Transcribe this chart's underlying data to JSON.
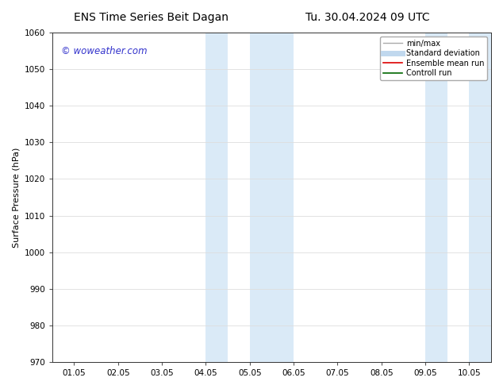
{
  "title_left": "ENS Time Series Beit Dagan",
  "title_right": "Tu. 30.04.2024 09 UTC",
  "ylabel": "Surface Pressure (hPa)",
  "watermark": "© woweather.com",
  "watermark_color": "#3333cc",
  "ylim": [
    970,
    1060
  ],
  "yticks": [
    970,
    980,
    990,
    1000,
    1010,
    1020,
    1030,
    1040,
    1050,
    1060
  ],
  "xtick_labels": [
    "01.05",
    "02.05",
    "03.05",
    "04.05",
    "05.05",
    "06.05",
    "07.05",
    "08.05",
    "09.05",
    "10.05"
  ],
  "xtick_positions": [
    0,
    1,
    2,
    3,
    4,
    5,
    6,
    7,
    8,
    9
  ],
  "xlim": [
    -0.5,
    9.5
  ],
  "bg_color": "#ffffff",
  "plot_bg_color": "#ffffff",
  "shade_regions": [
    {
      "xmin": 3.0,
      "xmax": 3.5,
      "color": "#daeaf7"
    },
    {
      "xmin": 4.0,
      "xmax": 5.0,
      "color": "#daeaf7"
    },
    {
      "xmin": 8.0,
      "xmax": 8.5,
      "color": "#daeaf7"
    },
    {
      "xmin": 9.0,
      "xmax": 9.5,
      "color": "#daeaf7"
    }
  ],
  "legend_items": [
    {
      "label": "min/max",
      "color": "#aaaaaa",
      "lw": 1.0,
      "style": "solid"
    },
    {
      "label": "Standard deviation",
      "color": "#c0d8ee",
      "lw": 5,
      "style": "solid"
    },
    {
      "label": "Ensemble mean run",
      "color": "#dd0000",
      "lw": 1.2,
      "style": "solid"
    },
    {
      "label": "Controll run",
      "color": "#006600",
      "lw": 1.2,
      "style": "solid"
    }
  ],
  "grid_color": "#dddddd",
  "title_fontsize": 10,
  "ylabel_fontsize": 8,
  "tick_fontsize": 7.5,
  "legend_fontsize": 7,
  "watermark_fontsize": 8.5
}
